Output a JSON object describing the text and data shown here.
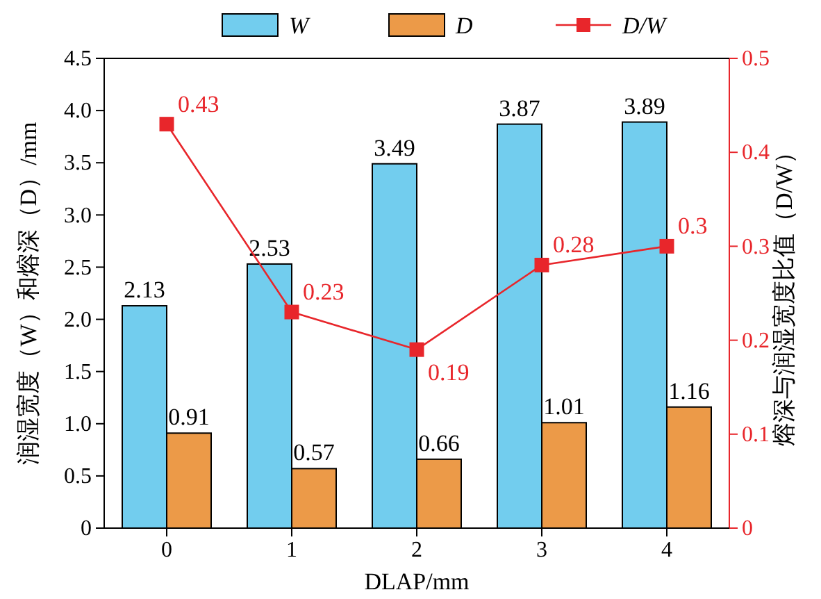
{
  "chart_data": {
    "type": "bar",
    "categories": [
      "0",
      "1",
      "2",
      "3",
      "4"
    ],
    "xlabel": "DLAP/mm",
    "ylabel": "润湿宽度（W）和熔深（D）/mm",
    "y2label": "熔深与润湿宽度比值（D/W）",
    "series": [
      {
        "name": "W",
        "color": "#72cdee",
        "values": [
          2.13,
          2.53,
          3.49,
          3.87,
          3.89
        ]
      },
      {
        "name": "D",
        "color": "#ec9a48",
        "values": [
          0.91,
          0.57,
          0.66,
          1.01,
          1.16
        ]
      },
      {
        "name": "D/W",
        "type": "line",
        "axis": "y2",
        "color": "#e8262b",
        "values": [
          0.43,
          0.23,
          0.19,
          0.28,
          0.3
        ],
        "value_labels": [
          "0.43",
          "0.23",
          "0.19",
          "0.28",
          "0.3"
        ]
      }
    ],
    "ylim": [
      0,
      4.5
    ],
    "yticks": [
      0,
      {
        "value": 0.5,
        "label": "0.5"
      },
      {
        "value": 1,
        "label": "1.0"
      },
      {
        "value": 1.5,
        "label": "1.5"
      },
      {
        "value": 2,
        "label": "2.0"
      },
      {
        "value": 2.5,
        "label": "2.5"
      },
      {
        "value": 3,
        "label": "3.0"
      },
      {
        "value": 3.5,
        "label": "3.5"
      },
      {
        "value": 4,
        "label": "4.0"
      },
      {
        "value": 4.5,
        "label": "4.5"
      }
    ],
    "y2lim": [
      0,
      0.5
    ],
    "y2ticks": [
      0,
      0.1,
      0.2,
      0.3,
      0.4,
      0.5
    ],
    "data_labels": true,
    "legend": "top",
    "marker": "square",
    "line_style": "solid",
    "grid": false
  }
}
